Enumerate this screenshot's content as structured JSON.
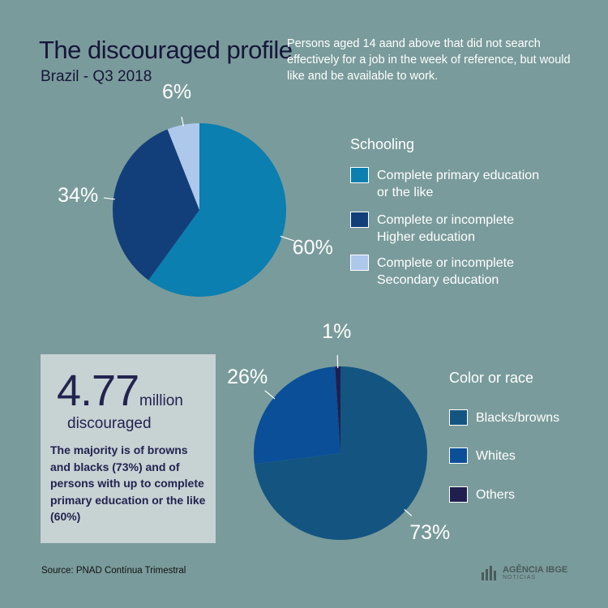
{
  "header": {
    "title": "The discouraged profile",
    "subtitle": "Brazil - Q3 2018",
    "description": "Persons aged 14 aand above that did not search effectively for a job in the week of reference, but would like and be available to work."
  },
  "chart_data": [
    {
      "type": "pie",
      "title": "Schooling",
      "slices": [
        {
          "label": "Complete primary education or the like",
          "value": 60,
          "display": "60%",
          "color": "#0a7fb0"
        },
        {
          "label": "Complete or incomplete Higher education",
          "value": 34,
          "display": "34%",
          "color": "#123f7a"
        },
        {
          "label": "Complete or incomplete Secondary education",
          "value": 6,
          "display": "6%",
          "color": "#aec8ec"
        }
      ],
      "legend_position": "right"
    },
    {
      "type": "pie",
      "title": "Color or race",
      "slices": [
        {
          "label": "Blacks/browns",
          "value": 73,
          "display": "73%",
          "color": "#135580"
        },
        {
          "label": "Whites",
          "value": 26,
          "display": "26%",
          "color": "#0a4f98"
        },
        {
          "label": "Others",
          "value": 1,
          "display": "1%",
          "color": "#1f1f4f"
        }
      ],
      "legend_position": "right"
    }
  ],
  "legend1": {
    "items": [
      {
        "line1": "Complete primary education",
        "line2": "or the like"
      },
      {
        "line1": "Complete or incomplete",
        "line2": "Higher education"
      },
      {
        "line1": "Complete or incomplete",
        "line2": "Secondary education"
      }
    ]
  },
  "highlight": {
    "number": "4.77",
    "unit": "million",
    "unit2": "discouraged",
    "text": "The majority is of browns and blacks (73%) and of persons with up to complete primary education or the like (60%)"
  },
  "footer": {
    "source": "Source: PNAD Contínua Trimestral",
    "logo_main": "AGÊNCIA IBGE",
    "logo_sub": "NOTÍCIAS"
  }
}
